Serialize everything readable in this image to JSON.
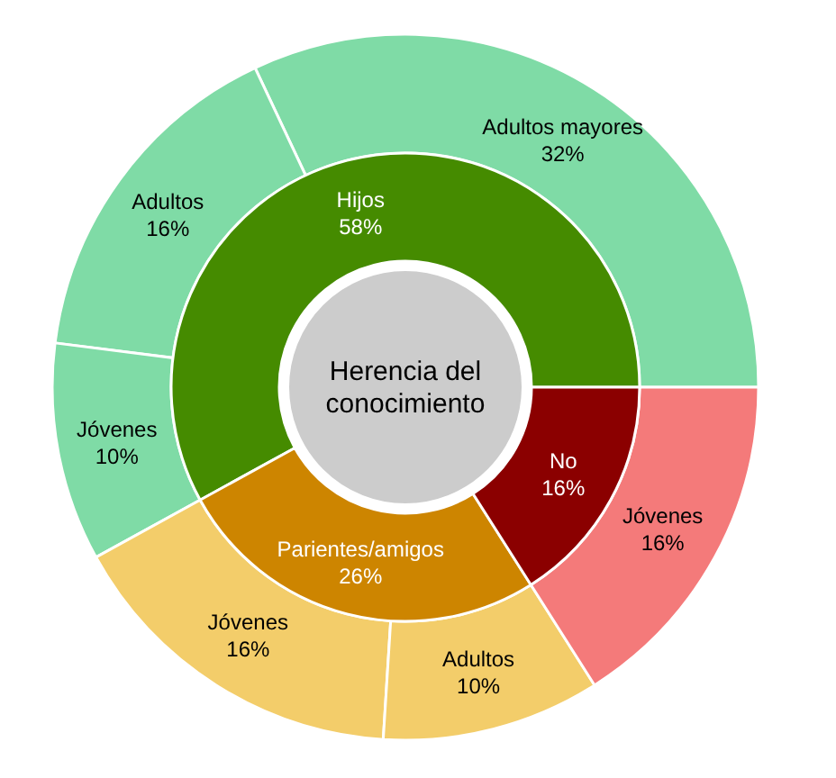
{
  "chart_data": [
    {
      "type": "donut",
      "title": "Herencia del conocimiento",
      "categories": [
        "Hijos",
        "Parientes/amigos",
        "No"
      ],
      "values": [
        58,
        26,
        16
      ],
      "value_labels": [
        "58%",
        "26%",
        "16%"
      ],
      "colors": [
        "#458b00",
        "#cd8500",
        "#8b0000"
      ]
    },
    {
      "type": "donut",
      "categories": [
        "Adultos mayores",
        "Adultos",
        "Jóvenes",
        "Jóvenes",
        "Adultos",
        "Jóvenes"
      ],
      "values": [
        32,
        16,
        10,
        16,
        10,
        16
      ],
      "value_labels": [
        "32%",
        "16%",
        "10%",
        "16%",
        "10%",
        "16%"
      ],
      "colors": [
        "#7fdba6",
        "#7fdba6",
        "#7fdba6",
        "#f3cd6a",
        "#f3cd6a",
        "#f47a7a"
      ]
    }
  ]
}
